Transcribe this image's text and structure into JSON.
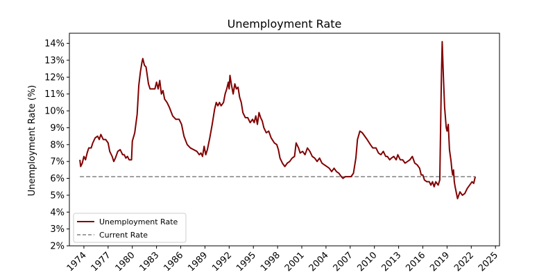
{
  "chart_data": {
    "type": "line",
    "title": "Unemployment Rate",
    "xlabel": "",
    "ylabel": "Unemployment Rate (%)",
    "xlim": [
      1972.2,
      2025.5
    ],
    "ylim": [
      2,
      14.6
    ],
    "yticks": [
      2,
      3,
      4,
      5,
      6,
      7,
      8,
      9,
      10,
      11,
      12,
      13,
      14
    ],
    "ytick_labels": [
      "2%",
      "3%",
      "4%",
      "5%",
      "6%",
      "7%",
      "8%",
      "9%",
      "10%",
      "11%",
      "12%",
      "13%",
      "14%"
    ],
    "xticks": [
      1974,
      1977,
      1980,
      1983,
      1986,
      1989,
      1992,
      1995,
      1998,
      2001,
      2004,
      2007,
      2010,
      2013,
      2016,
      2019,
      2022,
      2025
    ],
    "xtick_labels": [
      "1974",
      "1977",
      "1980",
      "1983",
      "1986",
      "1989",
      "1992",
      "1995",
      "1998",
      "2001",
      "2004",
      "2007",
      "2010",
      "2013",
      "2016",
      "2019",
      "2022",
      "2025"
    ],
    "legend_position": "lower-left",
    "series": [
      {
        "name": "Unemployment Rate",
        "color": "#800000",
        "style": "solid",
        "points": [
          [
            1973.5,
            7.1
          ],
          [
            1973.6,
            6.7
          ],
          [
            1973.8,
            6.9
          ],
          [
            1974.0,
            7.3
          ],
          [
            1974.2,
            7.1
          ],
          [
            1974.4,
            7.5
          ],
          [
            1974.6,
            7.8
          ],
          [
            1974.9,
            7.8
          ],
          [
            1975.1,
            8.1
          ],
          [
            1975.4,
            8.4
          ],
          [
            1975.7,
            8.5
          ],
          [
            1975.9,
            8.3
          ],
          [
            1976.1,
            8.6
          ],
          [
            1976.4,
            8.3
          ],
          [
            1976.7,
            8.3
          ],
          [
            1977.0,
            8.1
          ],
          [
            1977.2,
            7.6
          ],
          [
            1977.5,
            7.3
          ],
          [
            1977.7,
            7.0
          ],
          [
            1977.9,
            7.2
          ],
          [
            1978.2,
            7.6
          ],
          [
            1978.5,
            7.7
          ],
          [
            1978.8,
            7.4
          ],
          [
            1979.0,
            7.4
          ],
          [
            1979.2,
            7.2
          ],
          [
            1979.4,
            7.3
          ],
          [
            1979.6,
            7.1
          ],
          [
            1979.9,
            7.1
          ],
          [
            1980.0,
            8.2
          ],
          [
            1980.3,
            8.7
          ],
          [
            1980.6,
            9.8
          ],
          [
            1980.8,
            11.5
          ],
          [
            1981.0,
            12.3
          ],
          [
            1981.2,
            12.9
          ],
          [
            1981.3,
            13.1
          ],
          [
            1981.5,
            12.7
          ],
          [
            1981.7,
            12.6
          ],
          [
            1982.0,
            11.6
          ],
          [
            1982.2,
            11.3
          ],
          [
            1982.5,
            11.3
          ],
          [
            1982.8,
            11.3
          ],
          [
            1983.0,
            11.7
          ],
          [
            1983.2,
            11.3
          ],
          [
            1983.4,
            11.8
          ],
          [
            1983.6,
            11.0
          ],
          [
            1983.8,
            11.2
          ],
          [
            1984.0,
            10.7
          ],
          [
            1984.3,
            10.5
          ],
          [
            1984.6,
            10.2
          ],
          [
            1985.0,
            9.7
          ],
          [
            1985.4,
            9.5
          ],
          [
            1985.8,
            9.5
          ],
          [
            1986.1,
            9.2
          ],
          [
            1986.4,
            8.5
          ],
          [
            1986.8,
            8.0
          ],
          [
            1987.2,
            7.8
          ],
          [
            1987.6,
            7.7
          ],
          [
            1988.0,
            7.6
          ],
          [
            1988.3,
            7.4
          ],
          [
            1988.5,
            7.5
          ],
          [
            1988.7,
            7.3
          ],
          [
            1988.9,
            7.9
          ],
          [
            1989.1,
            7.4
          ],
          [
            1989.3,
            7.7
          ],
          [
            1989.6,
            8.4
          ],
          [
            1989.9,
            9.2
          ],
          [
            1990.2,
            10.1
          ],
          [
            1990.4,
            10.5
          ],
          [
            1990.6,
            10.3
          ],
          [
            1990.8,
            10.5
          ],
          [
            1991.0,
            10.3
          ],
          [
            1991.3,
            10.5
          ],
          [
            1991.5,
            11.0
          ],
          [
            1991.7,
            11.3
          ],
          [
            1991.9,
            11.7
          ],
          [
            1992.0,
            11.3
          ],
          [
            1992.1,
            12.1
          ],
          [
            1992.3,
            11.5
          ],
          [
            1992.5,
            11.0
          ],
          [
            1992.7,
            11.6
          ],
          [
            1992.9,
            11.3
          ],
          [
            1993.1,
            11.4
          ],
          [
            1993.3,
            10.8
          ],
          [
            1993.5,
            10.5
          ],
          [
            1993.7,
            9.9
          ],
          [
            1994.0,
            9.6
          ],
          [
            1994.3,
            9.6
          ],
          [
            1994.6,
            9.3
          ],
          [
            1994.9,
            9.5
          ],
          [
            1995.1,
            9.3
          ],
          [
            1995.3,
            9.7
          ],
          [
            1995.5,
            9.2
          ],
          [
            1995.7,
            9.9
          ],
          [
            1995.9,
            9.6
          ],
          [
            1996.1,
            9.4
          ],
          [
            1996.3,
            9.0
          ],
          [
            1996.6,
            8.7
          ],
          [
            1996.9,
            8.8
          ],
          [
            1997.2,
            8.4
          ],
          [
            1997.6,
            8.1
          ],
          [
            1997.9,
            8.0
          ],
          [
            1998.1,
            7.7
          ],
          [
            1998.3,
            7.2
          ],
          [
            1998.6,
            6.9
          ],
          [
            1998.9,
            6.7
          ],
          [
            1999.2,
            6.9
          ],
          [
            1999.5,
            7.0
          ],
          [
            1999.8,
            7.2
          ],
          [
            2000.1,
            7.3
          ],
          [
            2000.3,
            8.1
          ],
          [
            2000.6,
            7.8
          ],
          [
            2000.8,
            7.5
          ],
          [
            2001.1,
            7.6
          ],
          [
            2001.4,
            7.4
          ],
          [
            2001.7,
            7.8
          ],
          [
            2002.0,
            7.6
          ],
          [
            2002.3,
            7.3
          ],
          [
            2002.6,
            7.2
          ],
          [
            2002.9,
            7.0
          ],
          [
            2003.2,
            7.2
          ],
          [
            2003.5,
            6.9
          ],
          [
            2003.8,
            6.8
          ],
          [
            2004.1,
            6.7
          ],
          [
            2004.4,
            6.6
          ],
          [
            2004.7,
            6.4
          ],
          [
            2005.0,
            6.6
          ],
          [
            2005.3,
            6.4
          ],
          [
            2005.6,
            6.3
          ],
          [
            2005.9,
            6.1
          ],
          [
            2006.1,
            6.0
          ],
          [
            2006.4,
            6.1
          ],
          [
            2006.8,
            6.1
          ],
          [
            2007.1,
            6.1
          ],
          [
            2007.4,
            6.3
          ],
          [
            2007.7,
            7.2
          ],
          [
            2007.9,
            8.3
          ],
          [
            2008.2,
            8.8
          ],
          [
            2008.5,
            8.7
          ],
          [
            2008.8,
            8.5
          ],
          [
            2009.1,
            8.3
          ],
          [
            2009.5,
            8.0
          ],
          [
            2009.8,
            7.8
          ],
          [
            2010.2,
            7.8
          ],
          [
            2010.5,
            7.5
          ],
          [
            2010.8,
            7.4
          ],
          [
            2011.1,
            7.6
          ],
          [
            2011.4,
            7.3
          ],
          [
            2011.6,
            7.3
          ],
          [
            2011.9,
            7.1
          ],
          [
            2012.1,
            7.2
          ],
          [
            2012.4,
            7.3
          ],
          [
            2012.7,
            7.1
          ],
          [
            2012.9,
            7.4
          ],
          [
            2013.2,
            7.1
          ],
          [
            2013.5,
            7.1
          ],
          [
            2013.8,
            6.9
          ],
          [
            2014.1,
            7.0
          ],
          [
            2014.4,
            7.1
          ],
          [
            2014.7,
            7.3
          ],
          [
            2015.0,
            6.9
          ],
          [
            2015.3,
            6.8
          ],
          [
            2015.6,
            6.6
          ],
          [
            2015.8,
            6.2
          ],
          [
            2016.0,
            6.2
          ],
          [
            2016.2,
            5.9
          ],
          [
            2016.5,
            5.8
          ],
          [
            2016.8,
            5.8
          ],
          [
            2017.0,
            5.6
          ],
          [
            2017.2,
            5.8
          ],
          [
            2017.4,
            5.5
          ],
          [
            2017.6,
            5.8
          ],
          [
            2017.9,
            5.6
          ],
          [
            2018.1,
            5.9
          ],
          [
            2018.3,
            12.0
          ],
          [
            2018.4,
            14.1
          ],
          [
            2018.55,
            12.0
          ],
          [
            2018.7,
            10.2
          ],
          [
            2018.9,
            9.0
          ],
          [
            2019.0,
            8.8
          ],
          [
            2019.15,
            9.2
          ],
          [
            2019.3,
            7.7
          ],
          [
            2019.5,
            7.0
          ],
          [
            2019.6,
            6.5
          ],
          [
            2019.7,
            6.2
          ],
          [
            2019.8,
            6.5
          ],
          [
            2019.9,
            5.8
          ],
          [
            2020.0,
            5.5
          ],
          [
            2020.3,
            4.8
          ],
          [
            2020.6,
            5.2
          ],
          [
            2020.9,
            5.0
          ],
          [
            2021.2,
            5.1
          ],
          [
            2021.5,
            5.4
          ],
          [
            2021.8,
            5.6
          ],
          [
            2022.1,
            5.8
          ],
          [
            2022.3,
            5.7
          ],
          [
            2022.5,
            6.1
          ]
        ]
      },
      {
        "name": "Current Rate",
        "color": "#808080",
        "style": "dashed",
        "points": [
          [
            1973.5,
            6.1
          ],
          [
            2022.5,
            6.1
          ]
        ]
      }
    ]
  }
}
